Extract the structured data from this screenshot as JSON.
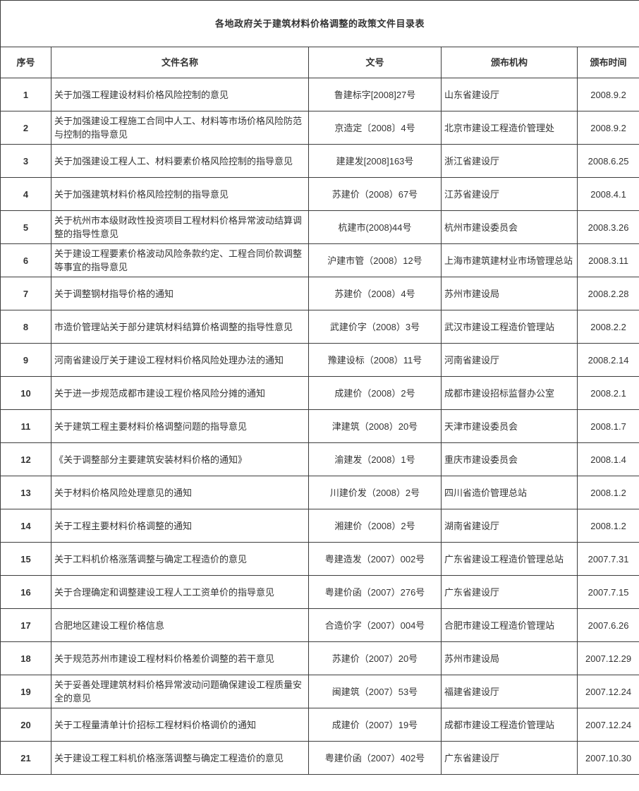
{
  "title": "各地政府关于建筑材料价格调整的政策文件目录表",
  "table": {
    "headers": [
      "序号",
      "文件名称",
      "文号",
      "颁布机构",
      "颁布时间"
    ],
    "rows": [
      [
        "1",
        "关于加强工程建设材料价格风险控制的意见",
        "鲁建标字[2008]27号",
        "山东省建设厅",
        "2008.9.2"
      ],
      [
        "2",
        "关于加强建设工程施工合同中人工、材料等市场价格风险防范与控制的指导意见",
        "京造定〔2008〕4号",
        "北京市建设工程造价管理处",
        "2008.9.2"
      ],
      [
        "3",
        "关于加强建设工程人工、材料要素价格风险控制的指导意见",
        "建建发[2008]163号",
        "浙江省建设厅",
        "2008.6.25"
      ],
      [
        "4",
        "关于加强建筑材料价格风险控制的指导意见",
        "苏建价（2008）67号",
        "江苏省建设厅",
        "2008.4.1"
      ],
      [
        "5",
        "关于杭州市本级财政性投资项目工程材料价格异常波动结算调整的指导性意见",
        "杭建市(2008)44号",
        "杭州市建设委员会",
        "2008.3.26"
      ],
      [
        "6",
        "关于建设工程要素价格波动风险条款约定、工程合同价款调整等事宜的指导意见",
        "沪建市管（2008）12号",
        "上海市建筑建材业市场管理总站",
        "2008.3.11"
      ],
      [
        "7",
        "关于调整钢材指导价格的通知",
        "苏建价（2008）4号",
        "苏州市建设局",
        "2008.2.28"
      ],
      [
        "8",
        "市造价管理站关于部分建筑材料结算价格调整的指导性意见",
        "武建价字（2008）3号",
        "武汉市建设工程造价管理站",
        "2008.2.2"
      ],
      [
        "9",
        "河南省建设厅关于建设工程材料价格风险处理办法的通知",
        "豫建设标（2008）11号",
        "河南省建设厅",
        "2008.2.14"
      ],
      [
        "10",
        "关于进一步规范成都市建设工程价格风险分摊的通知",
        "成建价（2008）2号",
        "成都市建设招标监督办公室",
        "2008.2.1"
      ],
      [
        "11",
        "关于建筑工程主要材料价格调整问题的指导意见",
        "津建筑（2008）20号",
        "天津市建设委员会",
        "2008.1.7"
      ],
      [
        "12",
        "《关于调整部分主要建筑安装材料价格的通知》",
        "渝建发（2008）1号",
        "重庆市建设委员会",
        "2008.1.4"
      ],
      [
        "13",
        "关于材料价格风险处理意见的通知",
        "川建价发（2008）2号",
        "四川省造价管理总站",
        "2008.1.2"
      ],
      [
        "14",
        "关于工程主要材料价格调整的通知",
        "湘建价（2008）2号",
        "湖南省建设厅",
        "2008.1.2"
      ],
      [
        "15",
        "关于工料机价格涨落调整与确定工程造价的意见",
        "粤建造发（2007）002号",
        "广东省建设工程造价管理总站",
        "2007.7.31"
      ],
      [
        "16",
        "关于合理确定和调整建设工程人工工资单价的指导意见",
        "粤建价函（2007）276号",
        "广东省建设厅",
        "2007.7.15"
      ],
      [
        "17",
        "合肥地区建设工程价格信息",
        "合造价字（2007）004号",
        "合肥市建设工程造价管理站",
        "2007.6.26"
      ],
      [
        "18",
        "关于规范苏州市建设工程材料价格差价调整的若干意见",
        "苏建价（2007）20号",
        "苏州市建设局",
        "2007.12.29"
      ],
      [
        "19",
        "关于妥善处理建筑材料价格异常波动问题确保建设工程质量安全的意见",
        "闽建筑（2007）53号",
        "福建省建设厅",
        "2007.12.24"
      ],
      [
        "20",
        "关于工程量清单计价招标工程材料价格调价的通知",
        "成建价（2007）19号",
        "成都市建设工程造价管理站",
        "2007.12.24"
      ],
      [
        "21",
        "关于建设工程工料机价格涨落调整与确定工程造价的意见",
        "粤建价函（2007）402号",
        "广东省建设厅",
        "2007.10.30"
      ]
    ]
  },
  "colors": {
    "text": "#333333",
    "border": "#3d3d3d",
    "background": "#ffffff"
  }
}
